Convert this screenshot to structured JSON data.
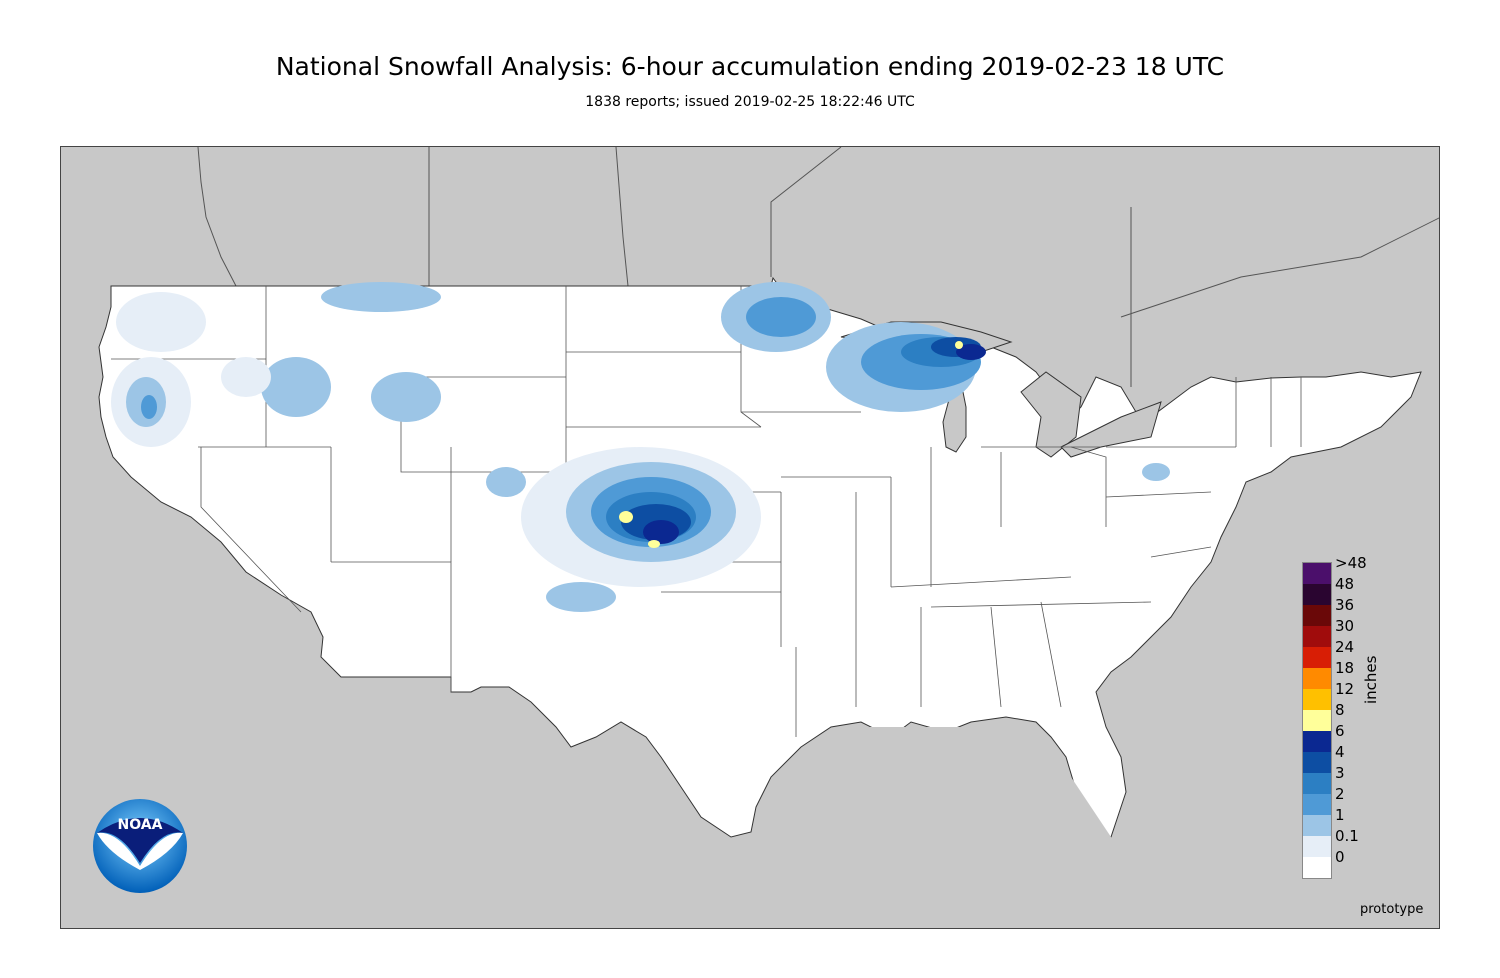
{
  "header": {
    "title": "National Snowfall Analysis: 6-hour accumulation ending 2019-02-23 18 UTC",
    "subtitle": "1838 reports; issued 2019-02-25 18:22:46 UTC"
  },
  "legend": {
    "unit_label": "inches",
    "bins": [
      {
        "label": ">48",
        "color": "#4b0f6b"
      },
      {
        "label": "48",
        "color": "#2a0530"
      },
      {
        "label": "36",
        "color": "#6a0808"
      },
      {
        "label": "30",
        "color": "#a00c0c"
      },
      {
        "label": "24",
        "color": "#d81e05"
      },
      {
        "label": "18",
        "color": "#ff8a00"
      },
      {
        "label": "12",
        "color": "#ffc000"
      },
      {
        "label": "8",
        "color": "#ffff9a"
      },
      {
        "label": "6",
        "color": "#0b2891"
      },
      {
        "label": "4",
        "color": "#0d4ea3"
      },
      {
        "label": "3",
        "color": "#2c7fc3"
      },
      {
        "label": "2",
        "color": "#4f9ad6"
      },
      {
        "label": "1",
        "color": "#9cc5e6"
      },
      {
        "label": "0.1",
        "color": "#e6eef7"
      },
      {
        "label": "0",
        "color": "#ffffff"
      }
    ]
  },
  "footer": {
    "note": "prototype"
  },
  "logo": {
    "text": "NOAA",
    "icon": "noaa-logo-icon"
  },
  "map": {
    "background_color": "#c8c8c8",
    "land_color": "#ffffff",
    "heaviest_snow_areas": [
      "eastern Colorado / western Kansas",
      "Upper Peninsula of Michigan"
    ]
  }
}
